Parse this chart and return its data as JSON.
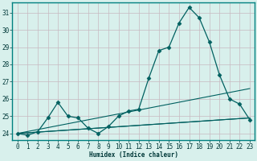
{
  "xlabel": "Humidex (Indice chaleur)",
  "bg_color": "#d8f0ec",
  "grid_color": "#c8b8c0",
  "line_color": "#006060",
  "border_color": "#008080",
  "xlim": [
    -0.5,
    23.5
  ],
  "ylim": [
    23.6,
    31.6
  ],
  "yticks": [
    24,
    25,
    26,
    27,
    28,
    29,
    30,
    31
  ],
  "xticks": [
    0,
    1,
    2,
    3,
    4,
    5,
    6,
    7,
    8,
    9,
    10,
    11,
    12,
    13,
    14,
    15,
    16,
    17,
    18,
    19,
    20,
    21,
    22,
    23
  ],
  "curve1_x": [
    0,
    1,
    2,
    3,
    4,
    5,
    6,
    7,
    8,
    9,
    10,
    11,
    12,
    13,
    14,
    15,
    16,
    17,
    18,
    19,
    20,
    21,
    22,
    23
  ],
  "curve1_y": [
    24.0,
    23.9,
    24.1,
    24.9,
    25.8,
    25.0,
    24.9,
    24.3,
    24.0,
    24.4,
    25.0,
    25.3,
    25.4,
    27.2,
    28.8,
    29.0,
    30.4,
    31.3,
    30.7,
    29.3,
    27.4,
    26.0,
    25.7,
    24.8
  ],
  "line2_x": [
    0,
    23
  ],
  "line2_y": [
    24.0,
    24.9
  ],
  "line3_x": [
    0,
    23
  ],
  "line3_y": [
    24.0,
    26.6
  ],
  "line4_x": [
    0,
    23
  ],
  "line4_y": [
    24.0,
    24.9
  ]
}
